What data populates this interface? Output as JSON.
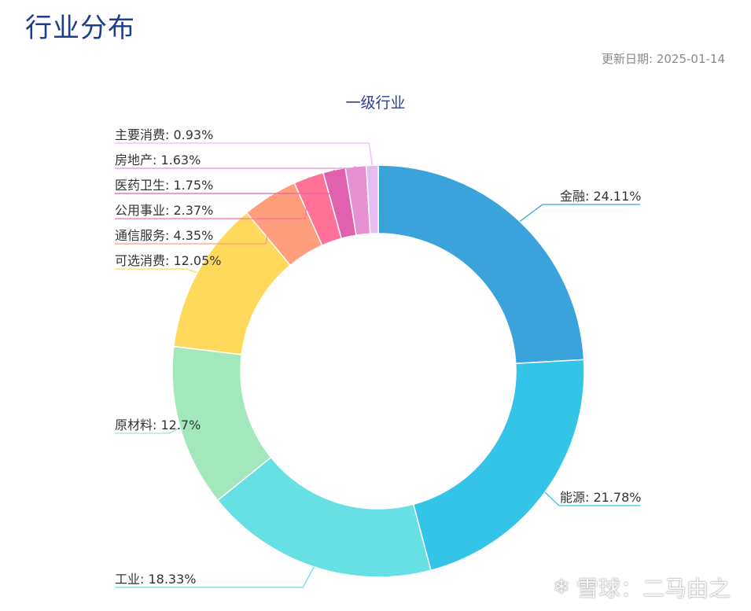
{
  "header": {
    "title": "行业分布",
    "update_date": "更新日期: 2025-01-14"
  },
  "watermark": {
    "text": "雪球：二马由之",
    "icon": "snowball-logo-icon"
  },
  "chart_data": {
    "type": "pie",
    "title": "一级行业",
    "donut": true,
    "slices": [
      {
        "name": "金融",
        "value": 24.11,
        "label": "金融: 24.11%",
        "color": "#3aa3dc"
      },
      {
        "name": "能源",
        "value": 21.78,
        "label": "能源: 21.78%",
        "color": "#34c4e8"
      },
      {
        "name": "工业",
        "value": 18.33,
        "label": "工业: 18.33%",
        "color": "#66e0e4"
      },
      {
        "name": "原材料",
        "value": 12.7,
        "label": "原材料: 12.7%",
        "color": "#a3e8bd"
      },
      {
        "name": "可选消费",
        "value": 12.05,
        "label": "可选消费: 12.05%",
        "color": "#ffd95c"
      },
      {
        "name": "通信服务",
        "value": 4.35,
        "label": "通信服务: 4.35%",
        "color": "#ff9e7d"
      },
      {
        "name": "公用事业",
        "value": 2.37,
        "label": "公用事业: 2.37%",
        "color": "#ff7197"
      },
      {
        "name": "医药卫生",
        "value": 1.75,
        "label": "医药卫生: 1.75%",
        "color": "#e062ae"
      },
      {
        "name": "房地产",
        "value": 1.63,
        "label": "房地产: 1.63%",
        "color": "#e690d1"
      },
      {
        "name": "主要消费",
        "value": 0.93,
        "label": "主要消费: 0.93%",
        "color": "#e7bcf3"
      }
    ]
  }
}
